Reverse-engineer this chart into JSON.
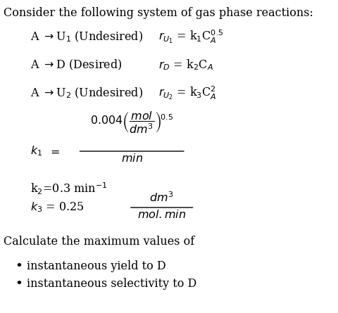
{
  "bg_color": "#ffffff",
  "text_color": "#000000",
  "figsize": [
    4.81,
    4.45
  ],
  "dpi": 100,
  "title": "Consider the following system of gas phase reactions:",
  "calc_line": "Calculate the maximum values of",
  "bullet1": "instantaneous yield to D",
  "bullet2": "instantaneous selectivity to D"
}
